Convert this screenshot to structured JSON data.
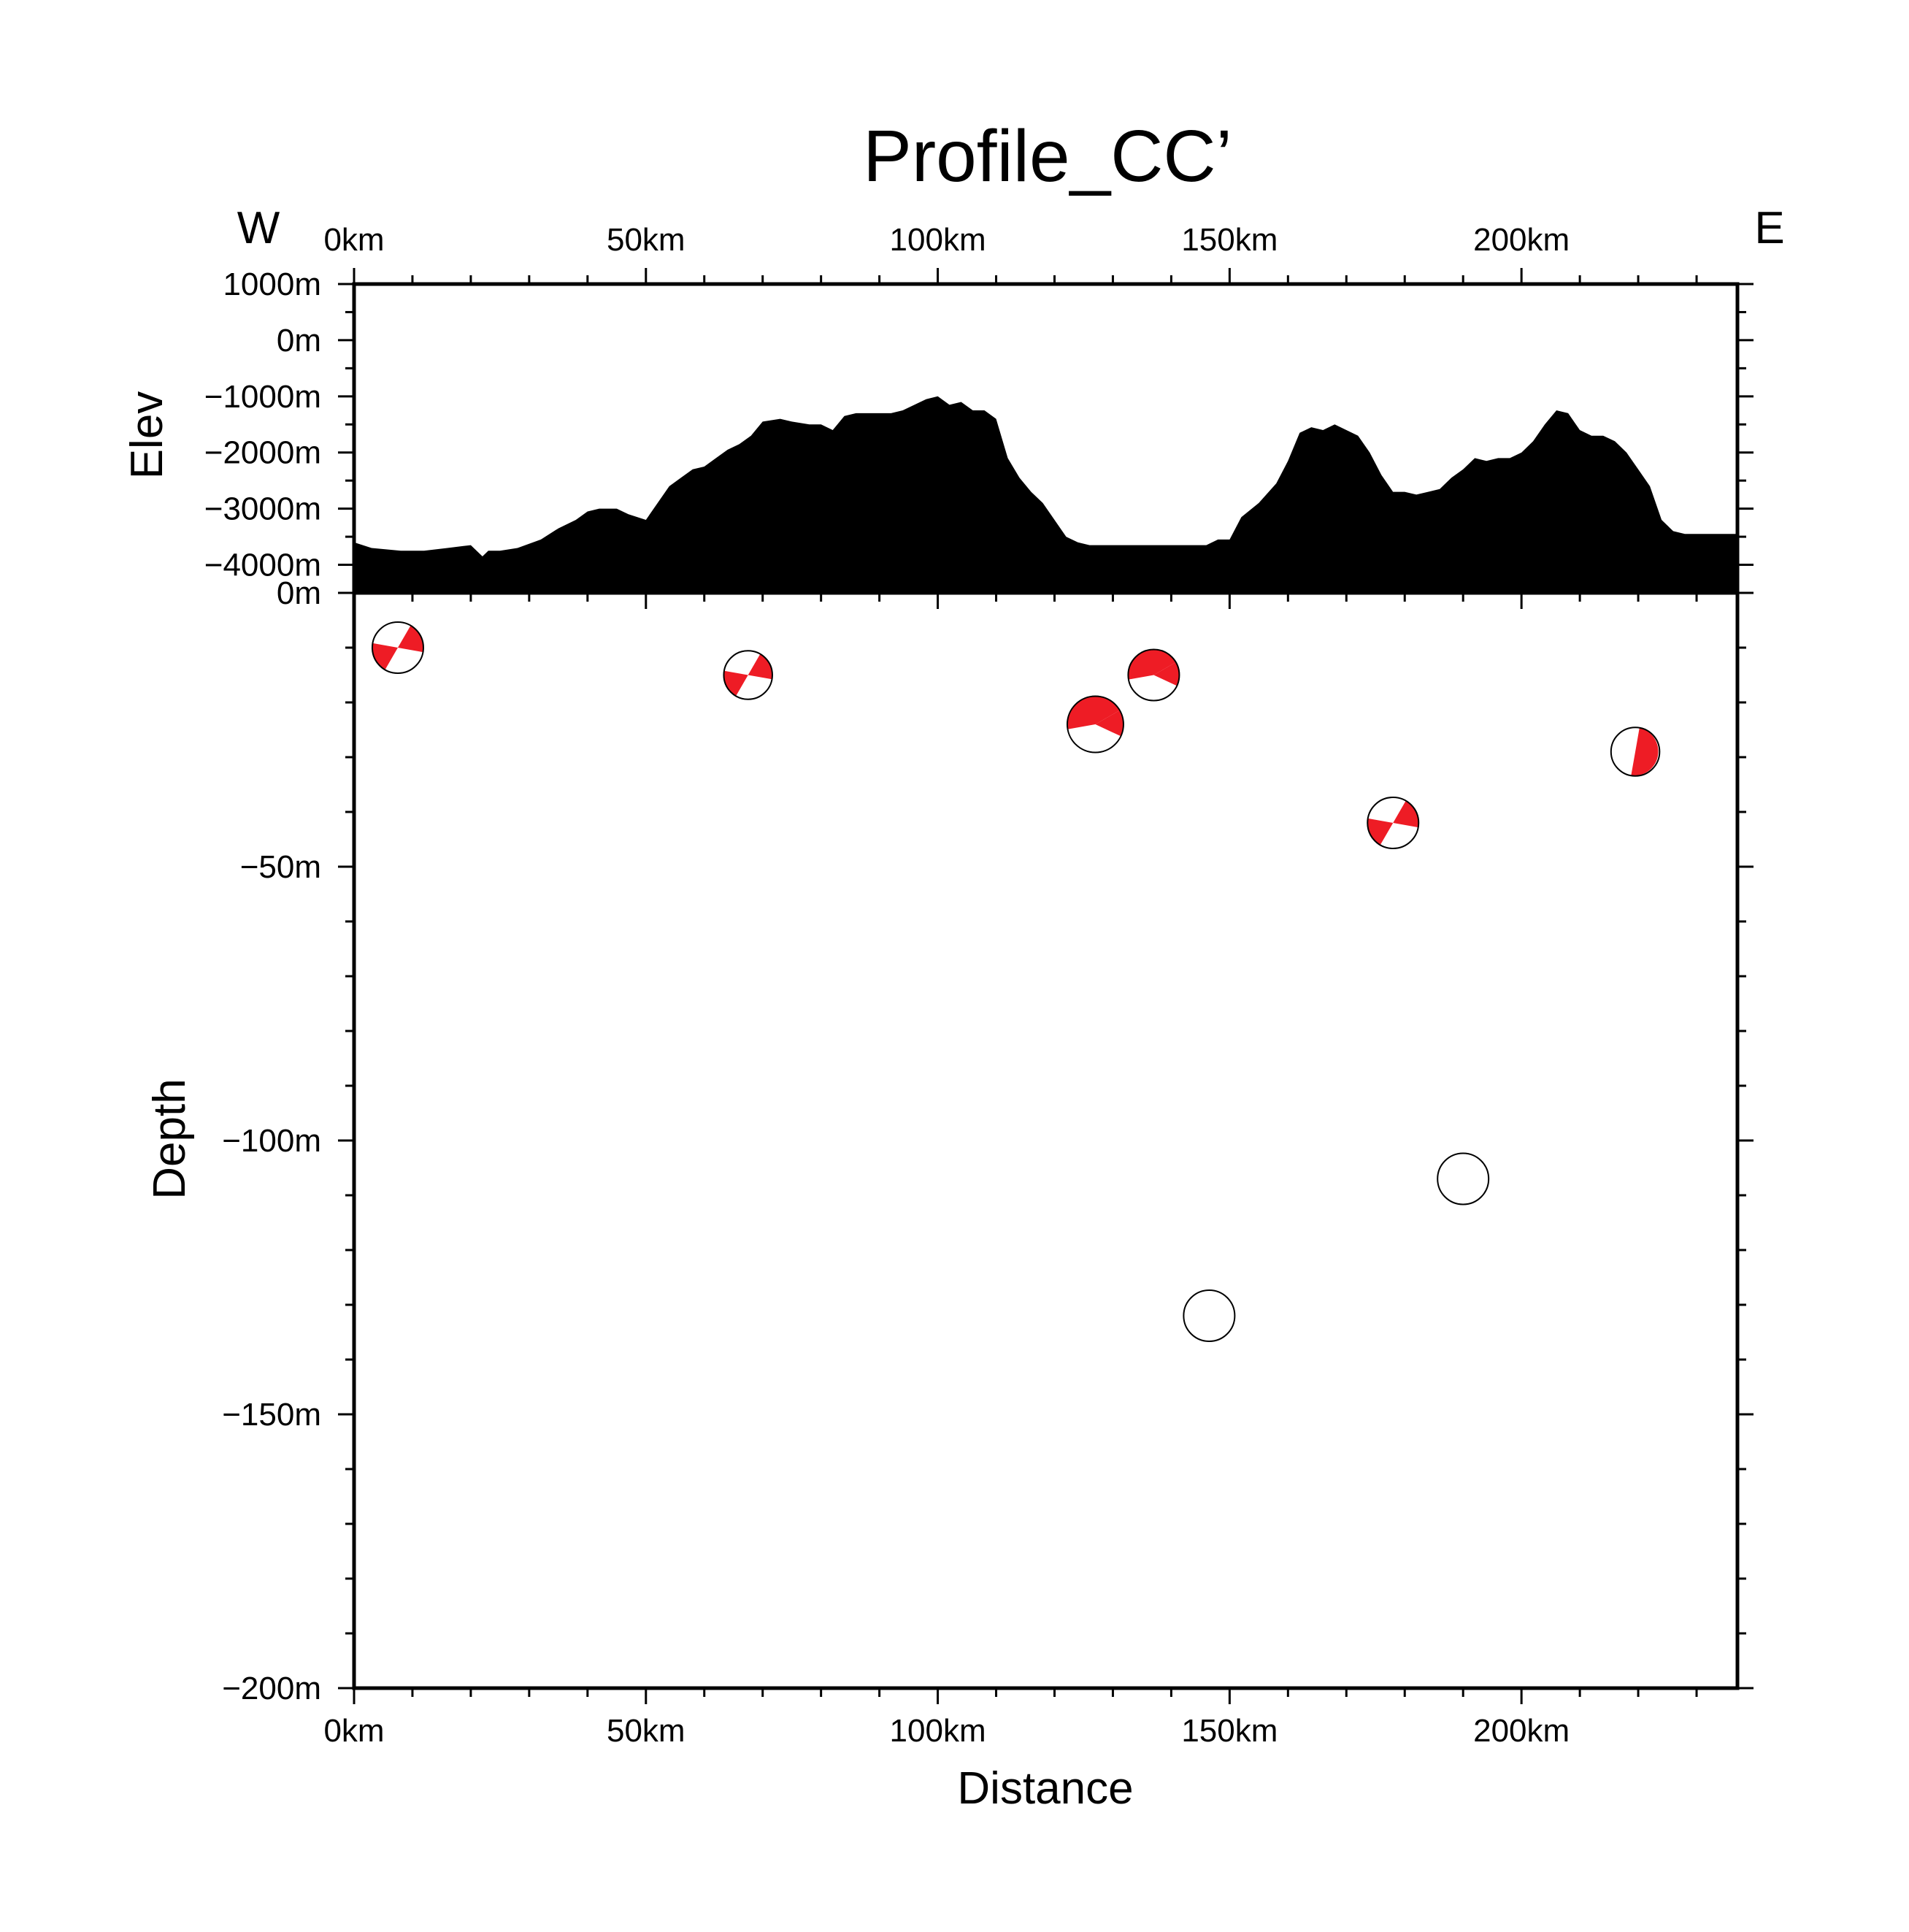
{
  "chart_data": [
    {
      "type": "area",
      "panel": "elevation-profile",
      "title": "Profile_CC’",
      "direction_left": "W",
      "direction_right": "E",
      "ylabel": "Elev",
      "xlim": [
        0,
        237
      ],
      "ylim": [
        -4500,
        1000
      ],
      "x_tick_values": [
        0,
        50,
        100,
        150,
        200
      ],
      "x_tick_labels": [
        "0km",
        "50km",
        "100km",
        "150km",
        "200km"
      ],
      "y_tick_values": [
        1000,
        0,
        -1000,
        -2000,
        -3000,
        -4000
      ],
      "y_tick_labels": [
        "1000m",
        "0m",
        "−1000m",
        "−2000m",
        "−3000m",
        "−4000m"
      ],
      "fill_color": "#000000",
      "x": [
        0,
        3,
        8,
        12,
        16,
        20,
        22,
        23,
        25,
        28,
        32,
        35,
        38,
        40,
        42,
        45,
        47,
        50,
        52,
        54,
        56,
        58,
        60,
        62,
        64,
        66,
        68,
        70,
        73,
        75,
        78,
        80,
        82,
        84,
        86,
        88,
        92,
        94,
        96,
        98,
        100,
        102,
        104,
        106,
        108,
        110,
        112,
        114,
        116,
        118,
        120,
        122,
        124,
        126,
        130,
        134,
        138,
        142,
        146,
        148,
        150,
        152,
        155,
        158,
        160,
        162,
        164,
        166,
        168,
        170,
        172,
        174,
        176,
        178,
        180,
        182,
        184,
        186,
        188,
        190,
        192,
        194,
        196,
        198,
        200,
        202,
        204,
        206,
        208,
        210,
        212,
        214,
        216,
        218,
        220,
        222,
        224,
        226,
        228,
        232,
        237
      ],
      "y": [
        -3600,
        -3700,
        -3750,
        -3750,
        -3700,
        -3650,
        -3850,
        -3750,
        -3750,
        -3700,
        -3550,
        -3350,
        -3200,
        -3050,
        -3000,
        -3000,
        -3100,
        -3200,
        -2900,
        -2600,
        -2450,
        -2300,
        -2250,
        -2100,
        -1950,
        -1850,
        -1700,
        -1450,
        -1400,
        -1450,
        -1500,
        -1500,
        -1600,
        -1350,
        -1300,
        -1300,
        -1300,
        -1250,
        -1150,
        -1050,
        -1000,
        -1150,
        -1100,
        -1250,
        -1250,
        -1400,
        -2100,
        -2450,
        -2700,
        -2900,
        -3200,
        -3500,
        -3600,
        -3650,
        -3650,
        -3650,
        -3650,
        -3650,
        -3650,
        -3550,
        -3550,
        -3150,
        -2900,
        -2550,
        -2150,
        -1650,
        -1550,
        -1600,
        -1500,
        -1600,
        -1700,
        -2000,
        -2400,
        -2700,
        -2700,
        -2750,
        -2700,
        -2650,
        -2450,
        -2300,
        -2100,
        -2150,
        -2100,
        -2100,
        -2000,
        -1800,
        -1500,
        -1250,
        -1300,
        -1600,
        -1700,
        -1700,
        -1800,
        -2000,
        -2300,
        -2600,
        -3200,
        -3400,
        -3450,
        -3450,
        -3450
      ]
    },
    {
      "type": "scatter",
      "panel": "focal-mechanism-section",
      "xlabel": "Distance",
      "ylabel": "Depth",
      "xlim": [
        0,
        237
      ],
      "ylim": [
        -200,
        0
      ],
      "x_tick_values": [
        0,
        50,
        100,
        150,
        200
      ],
      "x_tick_labels": [
        "0km",
        "50km",
        "100km",
        "150km",
        "200km"
      ],
      "y_tick_values": [
        0,
        -50,
        -100,
        -150,
        -200
      ],
      "y_tick_labels": [
        "0m",
        "−50m",
        "−100m",
        "−150m",
        "−200m"
      ],
      "marker": "beachball",
      "compressional_color": "#ee1c25",
      "dilatational_color": "#ffffff",
      "points": [
        {
          "x": 7.5,
          "y": -10,
          "mechanism": "strike-slip",
          "size": 1.0
        },
        {
          "x": 67.5,
          "y": -15,
          "mechanism": "strike-slip",
          "size": 0.95
        },
        {
          "x": 127,
          "y": -24,
          "mechanism": "oblique",
          "size": 1.1
        },
        {
          "x": 137,
          "y": -15,
          "mechanism": "oblique",
          "size": 1.0
        },
        {
          "x": 146.5,
          "y": -132,
          "mechanism": "thrust",
          "size": 1.0
        },
        {
          "x": 178,
          "y": -42,
          "mechanism": "strike-slip",
          "size": 1.0
        },
        {
          "x": 190,
          "y": -107,
          "mechanism": "thrust-reverse",
          "size": 1.0
        },
        {
          "x": 219.5,
          "y": -29,
          "mechanism": "dip-slip",
          "size": 0.95
        }
      ]
    }
  ]
}
